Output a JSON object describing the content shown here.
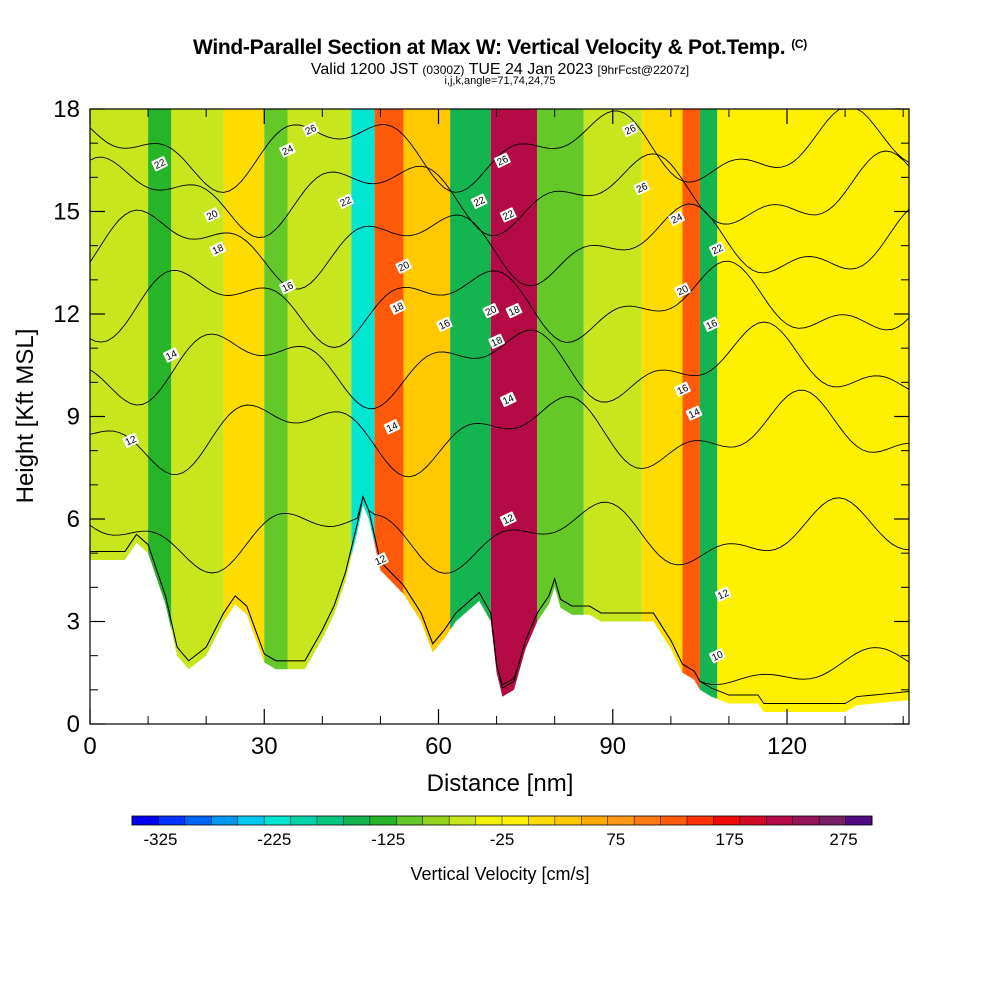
{
  "title": {
    "main": "Wind-Parallel Section at Max W: Vertical Velocity & Pot.Temp.",
    "copyright": "(C)",
    "valid_prefix": "Valid 1200 JST",
    "valid_utc": "(0300Z)",
    "valid_date": "TUE 24 Jan 2023",
    "forecast": "[9hrFcst@2207z]",
    "params": "i,j,k,angle=71,74,24,75"
  },
  "chart_data": {
    "type": "contour",
    "xlabel": "Distance [nm]",
    "ylabel": "Height [Kft MSL]",
    "xlim": [
      0,
      141
    ],
    "ylim": [
      0,
      18
    ],
    "x_ticks": [
      0,
      30,
      60,
      90,
      120
    ],
    "y_ticks": [
      0,
      3,
      6,
      9,
      12,
      15,
      18
    ],
    "colorbar": {
      "label": "Vertical Velocity [cm/s]",
      "range": [
        -350,
        300
      ],
      "interval": 25,
      "tick_labels": [
        "-325",
        "-225",
        "-125",
        "-25",
        "75",
        "175",
        "275"
      ],
      "colors": [
        "#0000f0",
        "#0033ff",
        "#0066f5",
        "#0099f0",
        "#00c8f0",
        "#00e6d2",
        "#00d2aa",
        "#00c882",
        "#14b450",
        "#28b428",
        "#64c828",
        "#96d21e",
        "#c8e61e",
        "#f0f000",
        "#fff000",
        "#ffdc00",
        "#ffc800",
        "#ffaa00",
        "#ff9614",
        "#ff7814",
        "#ff5a0a",
        "#ff3200",
        "#f00a0a",
        "#d20a28",
        "#b40a46",
        "#96145a",
        "#781e64",
        "#500a82"
      ]
    },
    "vertical_velocity_cells": [
      {
        "x": [
          0,
          10
        ],
        "w": -50
      },
      {
        "x": [
          10,
          14
        ],
        "w": -120
      },
      {
        "x": [
          14,
          23
        ],
        "w": -50
      },
      {
        "x": [
          23,
          30
        ],
        "w": 40
      },
      {
        "x": [
          30,
          34
        ],
        "w": -90
      },
      {
        "x": [
          34,
          45
        ],
        "w": -40
      },
      {
        "x": [
          45,
          49
        ],
        "w": -220
      },
      {
        "x": [
          49,
          54
        ],
        "w": 160
      },
      {
        "x": [
          54,
          62
        ],
        "w": 60
      },
      {
        "x": [
          62,
          69
        ],
        "w": -140
      },
      {
        "x": [
          69,
          77
        ],
        "w": 260
      },
      {
        "x": [
          77,
          85
        ],
        "w": -100
      },
      {
        "x": [
          85,
          95
        ],
        "w": -30
      },
      {
        "x": [
          95,
          102
        ],
        "w": 30
      },
      {
        "x": [
          102,
          105
        ],
        "w": 150
      },
      {
        "x": [
          105,
          108
        ],
        "w": -150
      },
      {
        "x": [
          108,
          141
        ],
        "w": 10
      }
    ],
    "terrain": [
      {
        "x": 0,
        "h": 4.8
      },
      {
        "x": 6,
        "h": 4.8
      },
      {
        "x": 8,
        "h": 5.3
      },
      {
        "x": 10,
        "h": 5.0
      },
      {
        "x": 13,
        "h": 3.5
      },
      {
        "x": 15,
        "h": 2.0
      },
      {
        "x": 17,
        "h": 1.6
      },
      {
        "x": 20,
        "h": 2.0
      },
      {
        "x": 23,
        "h": 3.0
      },
      {
        "x": 25,
        "h": 3.5
      },
      {
        "x": 27,
        "h": 3.2
      },
      {
        "x": 30,
        "h": 1.8
      },
      {
        "x": 32,
        "h": 1.6
      },
      {
        "x": 37,
        "h": 1.6
      },
      {
        "x": 40,
        "h": 2.5
      },
      {
        "x": 42,
        "h": 3.2
      },
      {
        "x": 44,
        "h": 4.2
      },
      {
        "x": 46,
        "h": 5.6
      },
      {
        "x": 47,
        "h": 6.4
      },
      {
        "x": 48,
        "h": 6.0
      },
      {
        "x": 50,
        "h": 4.5
      },
      {
        "x": 54,
        "h": 3.8
      },
      {
        "x": 57,
        "h": 3.0
      },
      {
        "x": 59,
        "h": 2.1
      },
      {
        "x": 61,
        "h": 2.5
      },
      {
        "x": 63,
        "h": 3.0
      },
      {
        "x": 67,
        "h": 3.6
      },
      {
        "x": 69,
        "h": 3.0
      },
      {
        "x": 70,
        "h": 1.5
      },
      {
        "x": 71,
        "h": 0.8
      },
      {
        "x": 73,
        "h": 1.0
      },
      {
        "x": 75,
        "h": 2.2
      },
      {
        "x": 77,
        "h": 3.0
      },
      {
        "x": 79,
        "h": 3.5
      },
      {
        "x": 80,
        "h": 4.0
      },
      {
        "x": 81,
        "h": 3.4
      },
      {
        "x": 83,
        "h": 3.2
      },
      {
        "x": 86,
        "h": 3.2
      },
      {
        "x": 88,
        "h": 3.0
      },
      {
        "x": 92,
        "h": 3.0
      },
      {
        "x": 94,
        "h": 3.0
      },
      {
        "x": 97,
        "h": 3.0
      },
      {
        "x": 100,
        "h": 2.2
      },
      {
        "x": 102,
        "h": 1.5
      },
      {
        "x": 104,
        "h": 1.3
      },
      {
        "x": 105,
        "h": 1.0
      },
      {
        "x": 107,
        "h": 0.8
      },
      {
        "x": 110,
        "h": 0.6
      },
      {
        "x": 115,
        "h": 0.6
      },
      {
        "x": 116,
        "h": 0.35
      },
      {
        "x": 124,
        "h": 0.35
      },
      {
        "x": 130,
        "h": 0.35
      },
      {
        "x": 132,
        "h": 0.55
      },
      {
        "x": 141,
        "h": 0.7
      }
    ],
    "theta_contours": [
      {
        "level": 10,
        "label": "10",
        "base": 0.3,
        "perturb": 0.1
      },
      {
        "level": 12,
        "label": "12",
        "base": 1.6,
        "perturb": 0.4
      },
      {
        "level": 14,
        "label": "14",
        "base": 5.5,
        "perturb": 0.7
      },
      {
        "level": 16,
        "label": "16",
        "base": 8.5,
        "perturb": 0.8
      },
      {
        "level": 18,
        "label": "18",
        "base": 10.5,
        "perturb": 0.8
      },
      {
        "level": 20,
        "label": "20",
        "base": 12.3,
        "perturb": 0.8
      },
      {
        "level": 22,
        "label": "22",
        "base": 14.0,
        "perturb": 0.8
      },
      {
        "level": 24,
        "label": "24",
        "base": 15.5,
        "perturb": 0.8
      },
      {
        "level": 26,
        "label": "26",
        "base": 16.8,
        "perturb": 0.8
      }
    ],
    "contour_labels": [
      {
        "text": "26",
        "x": 38,
        "y": 17.4
      },
      {
        "text": "24",
        "x": 34,
        "y": 16.8
      },
      {
        "text": "22",
        "x": 12,
        "y": 16.4
      },
      {
        "text": "20",
        "x": 21,
        "y": 14.9
      },
      {
        "text": "18",
        "x": 22,
        "y": 13.9
      },
      {
        "text": "16",
        "x": 34,
        "y": 12.8
      },
      {
        "text": "14",
        "x": 14,
        "y": 10.8
      },
      {
        "text": "12",
        "x": 7,
        "y": 8.3
      },
      {
        "text": "22",
        "x": 44,
        "y": 15.3
      },
      {
        "text": "20",
        "x": 54,
        "y": 13.4
      },
      {
        "text": "18",
        "x": 53,
        "y": 12.2
      },
      {
        "text": "16",
        "x": 61,
        "y": 11.7
      },
      {
        "text": "14",
        "x": 52,
        "y": 8.7
      },
      {
        "text": "12",
        "x": 50,
        "y": 4.8
      },
      {
        "text": "22",
        "x": 67,
        "y": 15.3
      },
      {
        "text": "20",
        "x": 69,
        "y": 12.1
      },
      {
        "text": "18",
        "x": 70,
        "y": 11.2
      },
      {
        "text": "26",
        "x": 71,
        "y": 16.5
      },
      {
        "text": "22",
        "x": 72,
        "y": 14.9
      },
      {
        "text": "18",
        "x": 73,
        "y": 12.1
      },
      {
        "text": "14",
        "x": 72,
        "y": 9.5
      },
      {
        "text": "12",
        "x": 72,
        "y": 6.0
      },
      {
        "text": "26",
        "x": 93,
        "y": 17.4
      },
      {
        "text": "26",
        "x": 95,
        "y": 15.7
      },
      {
        "text": "24",
        "x": 101,
        "y": 14.8
      },
      {
        "text": "22",
        "x": 108,
        "y": 13.9
      },
      {
        "text": "20",
        "x": 102,
        "y": 12.7
      },
      {
        "text": "16",
        "x": 107,
        "y": 11.7
      },
      {
        "text": "16",
        "x": 102,
        "y": 9.8
      },
      {
        "text": "14",
        "x": 104,
        "y": 9.1
      },
      {
        "text": "12",
        "x": 109,
        "y": 3.8
      },
      {
        "text": "10",
        "x": 108,
        "y": 2.0
      }
    ]
  }
}
